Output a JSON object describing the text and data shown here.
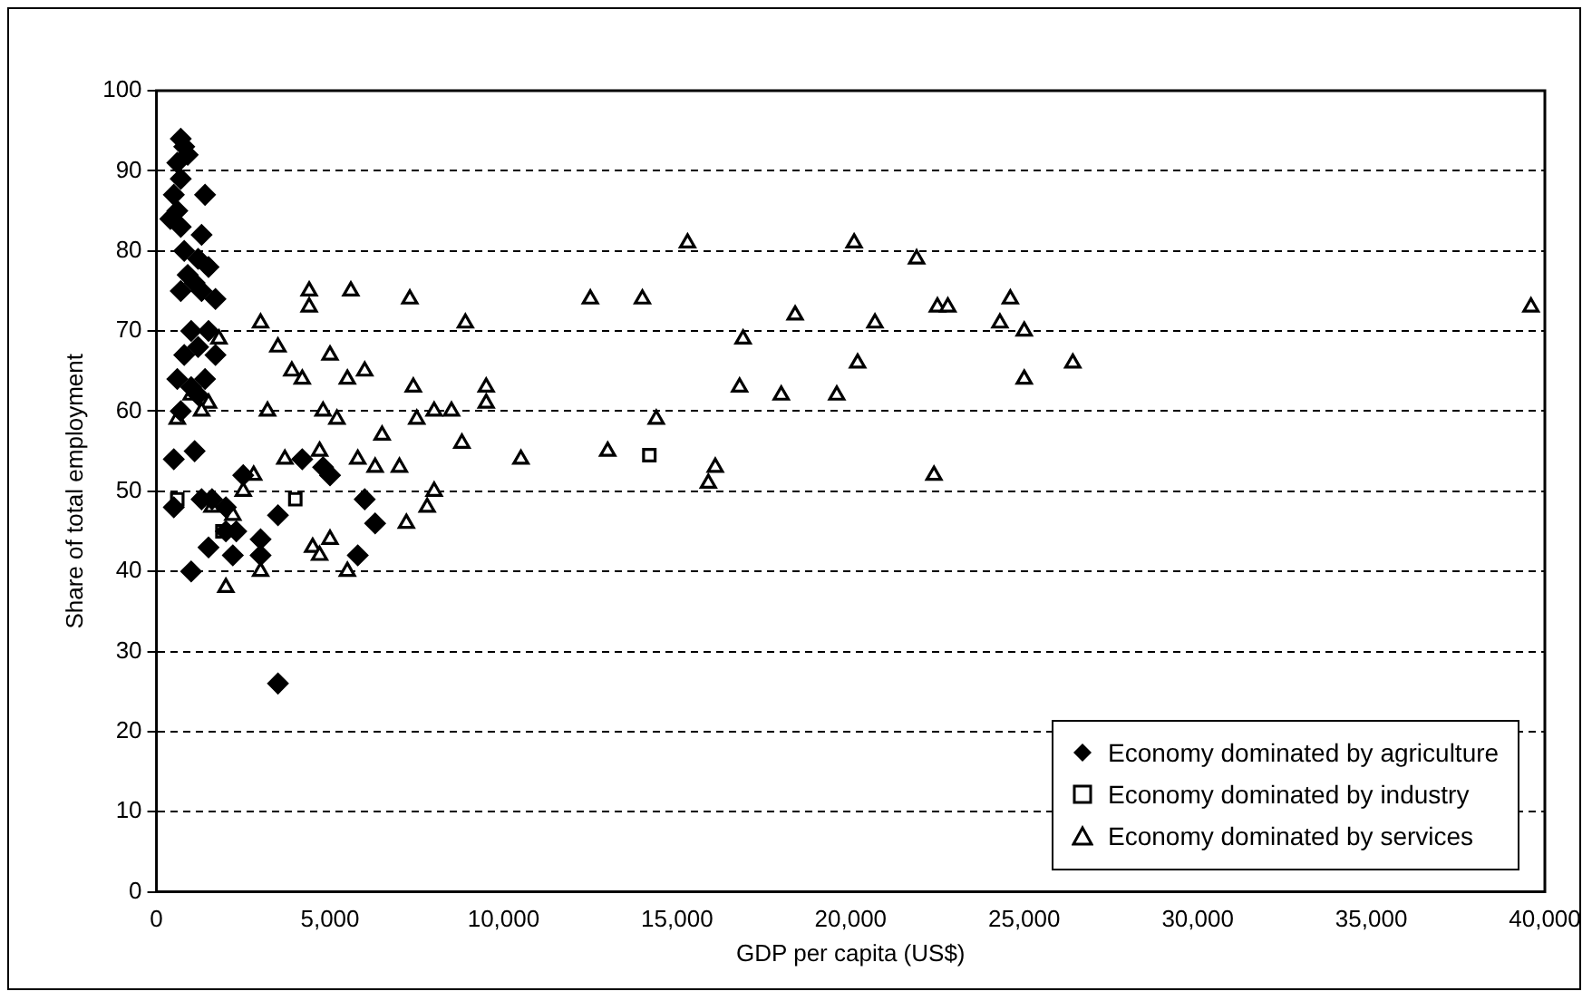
{
  "chart_data": {
    "type": "scatter",
    "xlabel": "GDP per capita (US$)",
    "ylabel": "Share of total employment",
    "xlim": [
      0,
      40000
    ],
    "xticks": [
      0,
      {
        "value": 5000,
        "label": "5,000"
      },
      {
        "value": 10000,
        "label": "10,000"
      },
      {
        "value": 15000,
        "label": "15,000"
      },
      {
        "value": 20000,
        "label": "20,000"
      },
      {
        "value": 25000,
        "label": "25,000"
      },
      {
        "value": 30000,
        "label": "30,000"
      },
      {
        "value": 35000,
        "label": "35,000"
      },
      {
        "value": 40000,
        "label": "40,000"
      }
    ],
    "ylim": [
      0,
      100
    ],
    "yticks": [
      0,
      10,
      20,
      30,
      40,
      50,
      60,
      70,
      80,
      90,
      100
    ],
    "grid": "y",
    "legend": "bottom right",
    "series": [
      {
        "name": "Economy dominated by agriculture",
        "color": "#000000",
        "marker": "diamond",
        "x": [
          700,
          800,
          600,
          900,
          700,
          500,
          600,
          400,
          700,
          1400,
          1300,
          800,
          1700,
          1200,
          900,
          1100,
          700,
          1300,
          1500,
          1000,
          1500,
          1200,
          800,
          600,
          1000,
          1400,
          700,
          1200,
          500,
          1100,
          500,
          1300,
          1600,
          2000,
          2200,
          2300,
          1500,
          2500,
          3000,
          3500,
          3000,
          4200,
          4800,
          5000,
          5800,
          6000,
          6300,
          1000,
          3500,
          2000,
          1700
        ],
        "values": [
          94,
          93,
          91,
          92,
          89,
          87,
          85,
          84,
          83,
          87,
          82,
          80,
          74,
          79,
          77,
          76,
          75,
          75,
          78,
          70,
          70,
          68,
          67,
          64,
          63,
          64,
          60,
          62,
          54,
          55,
          48,
          49,
          49,
          48,
          42,
          45,
          43,
          52,
          44,
          47,
          42,
          54,
          53,
          52,
          42,
          49,
          46,
          40,
          26,
          45,
          67
        ]
      },
      {
        "name": "Economy dominated by industry",
        "color": "#000000",
        "marker": "square",
        "x": [
          600,
          1900,
          4000,
          14200
        ],
        "values": [
          49,
          45,
          49,
          54.5
        ]
      },
      {
        "name": "Economy dominated by services",
        "color": "#000000",
        "marker": "triangle",
        "x": [
          600,
          1000,
          1500,
          1800,
          2200,
          2500,
          2800,
          3000,
          3200,
          3500,
          3700,
          3900,
          4200,
          4400,
          4400,
          4500,
          4700,
          4800,
          5000,
          5000,
          5200,
          5500,
          5500,
          5600,
          5800,
          6000,
          6300,
          6500,
          7000,
          7200,
          7300,
          7400,
          7500,
          7800,
          8000,
          8000,
          8500,
          8800,
          8900,
          9500,
          9500,
          10500,
          12500,
          13000,
          14000,
          14400,
          15300,
          15900,
          16100,
          16900,
          16800,
          18000,
          18400,
          19600,
          20100,
          20200,
          20700,
          21900,
          22400,
          22500,
          22800,
          24300,
          24600,
          25000,
          25000,
          26400,
          39600,
          2000,
          3000,
          4700,
          1300,
          1600
        ],
        "values": [
          59,
          62,
          61,
          69,
          47,
          50,
          52,
          71,
          60,
          68,
          54,
          65,
          64,
          75,
          73,
          43,
          55,
          60,
          67,
          44,
          59,
          64,
          40,
          75,
          54,
          65,
          53,
          57,
          53,
          46,
          74,
          63,
          59,
          48,
          50,
          60,
          60,
          56,
          71,
          63,
          61,
          54,
          74,
          55,
          74,
          59,
          81,
          51,
          53,
          69,
          63,
          62,
          72,
          62,
          81,
          66,
          71,
          79,
          52,
          73,
          73,
          71,
          74,
          70,
          64,
          66,
          73,
          38,
          40,
          42,
          60,
          48
        ]
      }
    ]
  }
}
